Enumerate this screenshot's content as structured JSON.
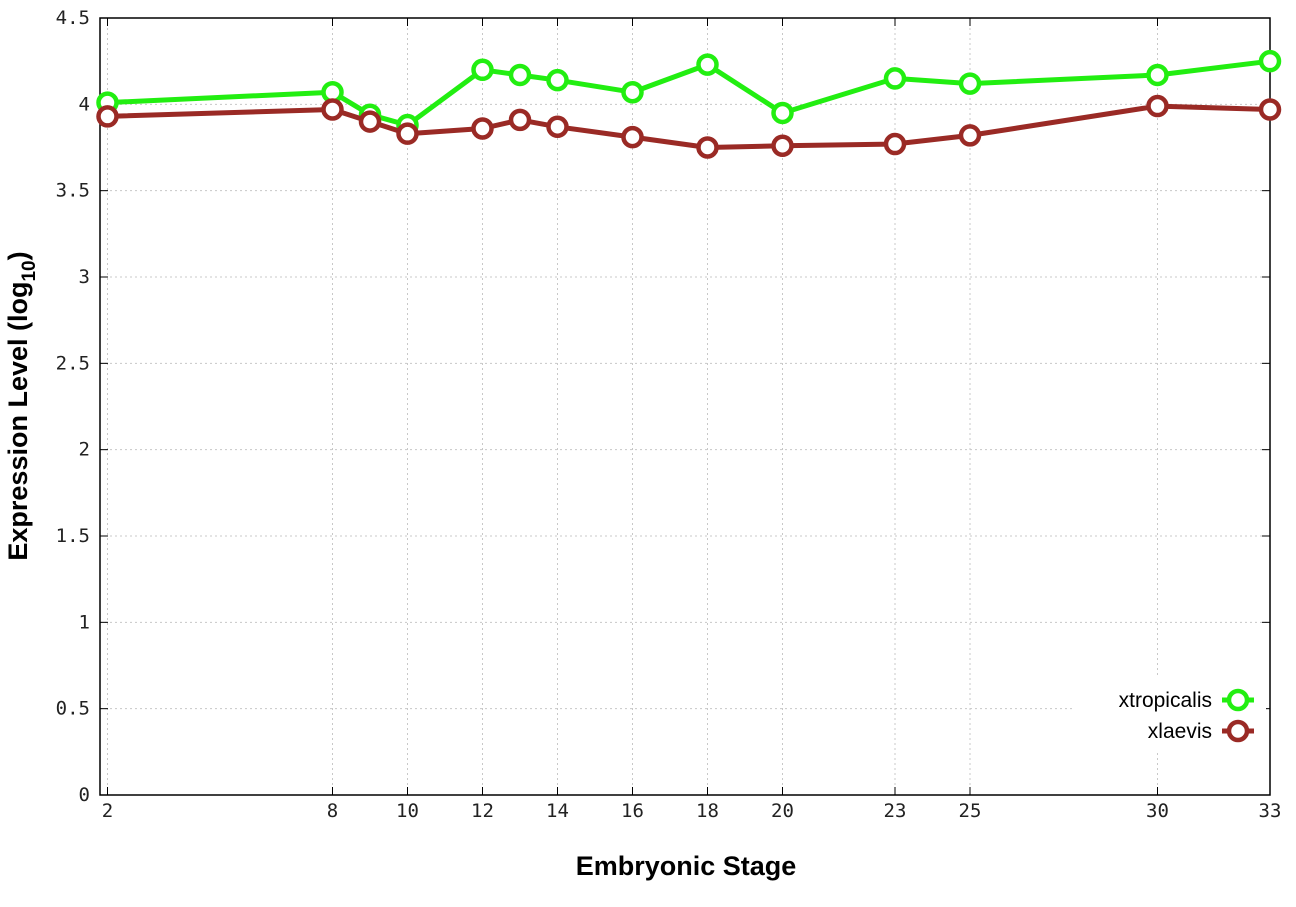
{
  "chart_data": {
    "type": "line",
    "title": "",
    "xlabel": "Embryonic Stage",
    "ylabel": "Expression Level (log",
    "ylabel_subscript": "10",
    "ylabel_suffix": ")",
    "xlim": [
      1.8,
      33
    ],
    "ylim": [
      0,
      4.5
    ],
    "x_ticks": [
      2,
      8,
      10,
      12,
      14,
      16,
      18,
      20,
      23,
      25,
      30,
      33
    ],
    "y_ticks": [
      {
        "value": 0,
        "label": "0"
      },
      {
        "value": 0.5,
        "label": "0.5"
      },
      {
        "value": 1,
        "label": "1"
      },
      {
        "value": 1.5,
        "label": "1.5"
      },
      {
        "value": 2,
        "label": "2"
      },
      {
        "value": 2.5,
        "label": "2.5"
      },
      {
        "value": 3,
        "label": "3"
      },
      {
        "value": 3.5,
        "label": "3.5"
      },
      {
        "value": 4,
        "label": "4"
      },
      {
        "value": 4.5,
        "label": "4.5"
      }
    ],
    "grid": true,
    "legend_position": "bottom-right",
    "x": [
      2,
      8,
      9,
      10,
      12,
      13,
      14,
      16,
      18,
      20,
      23,
      25,
      30,
      33
    ],
    "series": [
      {
        "name": "xtropicalis",
        "color": "#22ee11",
        "values": [
          4.01,
          4.07,
          3.94,
          3.88,
          4.2,
          4.17,
          4.14,
          4.07,
          4.23,
          3.95,
          4.15,
          4.12,
          4.17,
          4.25
        ]
      },
      {
        "name": "xlaevis",
        "color": "#9a2a25",
        "values": [
          3.93,
          3.97,
          3.9,
          3.83,
          3.86,
          3.91,
          3.87,
          3.81,
          3.75,
          3.76,
          3.77,
          3.82,
          3.99,
          3.97
        ]
      }
    ]
  }
}
